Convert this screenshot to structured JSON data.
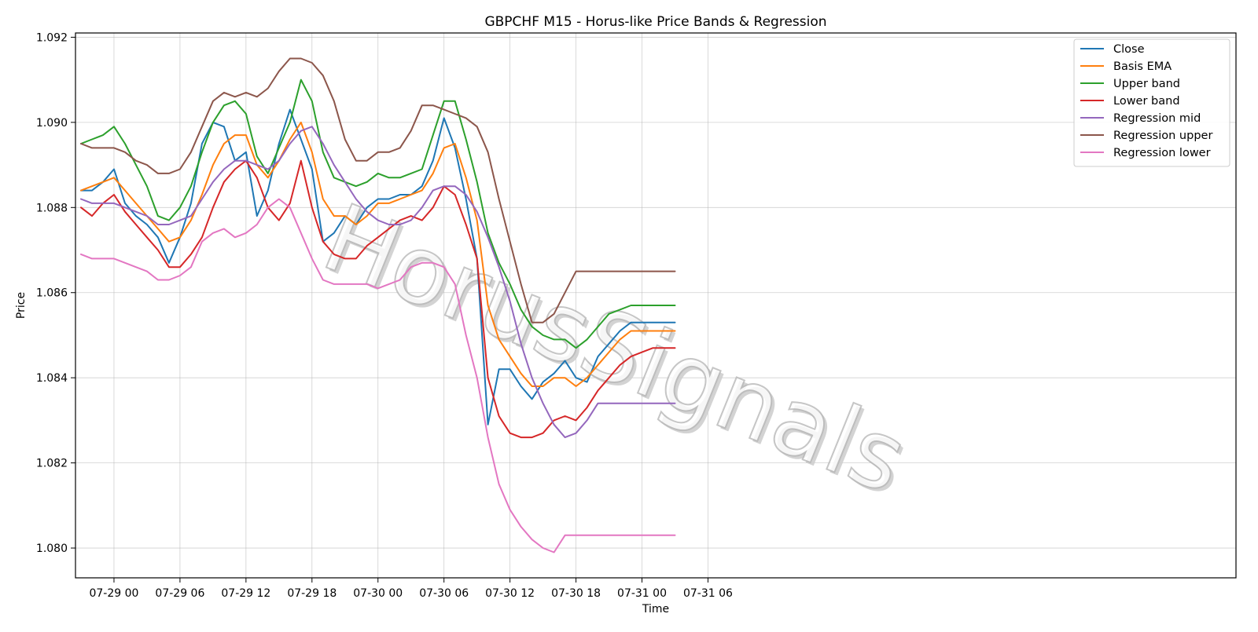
{
  "chart_data": {
    "type": "line",
    "title": "GBPCHF M15 - Horus-like Price Bands & Regression",
    "xlabel": "Time",
    "ylabel": "Price",
    "watermark": "HorusSignals",
    "xlim": [
      -3.5,
      102.0
    ],
    "ylim": [
      1.0793,
      1.0921
    ],
    "grid": true,
    "legend_position": "top-right",
    "xticks": [
      {
        "value": 0,
        "label": "07-29 00"
      },
      {
        "value": 6,
        "label": "07-29 06"
      },
      {
        "value": 12,
        "label": "07-29 12"
      },
      {
        "value": 18,
        "label": "07-29 18"
      },
      {
        "value": 24,
        "label": "07-30 00"
      },
      {
        "value": 30,
        "label": "07-30 06"
      },
      {
        "value": 36,
        "label": "07-30 12"
      },
      {
        "value": 42,
        "label": "07-30 18"
      },
      {
        "value": 48,
        "label": "07-31 00"
      },
      {
        "value": 54,
        "label": "07-31 06"
      }
    ],
    "yticks": [
      {
        "value": 1.08,
        "label": "1.080"
      },
      {
        "value": 1.082,
        "label": "1.082"
      },
      {
        "value": 1.084,
        "label": "1.084"
      },
      {
        "value": 1.086,
        "label": "1.086"
      },
      {
        "value": 1.088,
        "label": "1.088"
      },
      {
        "value": 1.09,
        "label": "1.090"
      },
      {
        "value": 1.092,
        "label": "1.092"
      }
    ],
    "x": [
      -3.0,
      -2.0,
      -1.0,
      0.0,
      1.0,
      2.0,
      3.0,
      4.0,
      5.0,
      6.0,
      7.0,
      8.0,
      9.0,
      10.0,
      11.0,
      12.0,
      13.0,
      14.0,
      15.0,
      16.0,
      17.0,
      18.0,
      19.0,
      20.0,
      21.0,
      22.0,
      23.0,
      24.0,
      25.0,
      26.0,
      27.0,
      28.0,
      29.0,
      30.0,
      31.0,
      32.0,
      33.0,
      34.0,
      35.0,
      36.0,
      37.0,
      38.0,
      39.0,
      40.0,
      41.0,
      42.0,
      43.0,
      44.0,
      45.0,
      46.0,
      47.0,
      48.0,
      49.0,
      50.0,
      51.0
    ],
    "series": [
      {
        "name": "Close",
        "color": "#1f77b4",
        "values": [
          1.0884,
          1.0884,
          1.0886,
          1.0889,
          1.0881,
          1.0878,
          1.0876,
          1.0873,
          1.0867,
          1.0873,
          1.0881,
          1.0895,
          1.09,
          1.0899,
          1.0891,
          1.0893,
          1.0878,
          1.0884,
          1.0895,
          1.0903,
          1.0896,
          1.0889,
          1.0872,
          1.0874,
          1.0878,
          1.0876,
          1.088,
          1.0882,
          1.0882,
          1.0883,
          1.0883,
          1.0885,
          1.0891,
          1.0901,
          1.0894,
          1.0882,
          1.0868,
          1.0829,
          1.0842,
          1.0842,
          1.0838,
          1.0835,
          1.0839,
          1.0841,
          1.0844,
          1.084,
          1.0839,
          1.0845,
          1.0848,
          1.0851,
          1.0853,
          1.0853,
          1.0853,
          1.0853,
          1.0853
        ]
      },
      {
        "name": "Basis EMA",
        "color": "#ff7f0e",
        "values": [
          1.0884,
          1.0885,
          1.0886,
          1.0887,
          1.0884,
          1.0881,
          1.0878,
          1.0875,
          1.0872,
          1.0873,
          1.0877,
          1.0883,
          1.089,
          1.0895,
          1.0897,
          1.0897,
          1.089,
          1.0887,
          1.0891,
          1.0896,
          1.09,
          1.0893,
          1.0882,
          1.0878,
          1.0878,
          1.0876,
          1.0878,
          1.0881,
          1.0881,
          1.0882,
          1.0883,
          1.0884,
          1.0888,
          1.0894,
          1.0895,
          1.0887,
          1.0877,
          1.0857,
          1.0849,
          1.0845,
          1.0841,
          1.0838,
          1.0838,
          1.084,
          1.084,
          1.0838,
          1.084,
          1.0843,
          1.0846,
          1.0849,
          1.0851,
          1.0851,
          1.0851,
          1.0851,
          1.0851
        ]
      },
      {
        "name": "Upper band",
        "color": "#2ca02c",
        "values": [
          1.0895,
          1.0896,
          1.0897,
          1.0899,
          1.0895,
          1.089,
          1.0885,
          1.0878,
          1.0877,
          1.088,
          1.0885,
          1.0893,
          1.09,
          1.0904,
          1.0905,
          1.0902,
          1.0892,
          1.0888,
          1.0894,
          1.09,
          1.091,
          1.0905,
          1.0893,
          1.0887,
          1.0886,
          1.0885,
          1.0886,
          1.0888,
          1.0887,
          1.0887,
          1.0888,
          1.0889,
          1.0897,
          1.0905,
          1.0905,
          1.0896,
          1.0886,
          1.0874,
          1.0867,
          1.0862,
          1.0856,
          1.0852,
          1.085,
          1.0849,
          1.0849,
          1.0847,
          1.0849,
          1.0852,
          1.0855,
          1.0856,
          1.0857,
          1.0857,
          1.0857,
          1.0857,
          1.0857
        ]
      },
      {
        "name": "Lower band",
        "color": "#d62728",
        "values": [
          1.088,
          1.0878,
          1.0881,
          1.0883,
          1.0879,
          1.0876,
          1.0873,
          1.087,
          1.0866,
          1.0866,
          1.0869,
          1.0873,
          1.088,
          1.0886,
          1.0889,
          1.0891,
          1.0887,
          1.088,
          1.0877,
          1.0881,
          1.0891,
          1.088,
          1.0872,
          1.0869,
          1.0868,
          1.0868,
          1.0871,
          1.0873,
          1.0875,
          1.0877,
          1.0878,
          1.0877,
          1.088,
          1.0885,
          1.0883,
          1.0876,
          1.0868,
          1.084,
          1.0831,
          1.0827,
          1.0826,
          1.0826,
          1.0827,
          1.083,
          1.0831,
          1.083,
          1.0833,
          1.0837,
          1.084,
          1.0843,
          1.0845,
          1.0846,
          1.0847,
          1.0847,
          1.0847
        ]
      },
      {
        "name": "Regression mid",
        "color": "#9467bd",
        "values": [
          1.0882,
          1.0881,
          1.0881,
          1.0881,
          1.088,
          1.0879,
          1.0878,
          1.0876,
          1.0876,
          1.0877,
          1.0878,
          1.0882,
          1.0886,
          1.0889,
          1.0891,
          1.0891,
          1.089,
          1.0889,
          1.0891,
          1.0895,
          1.0898,
          1.0899,
          1.0895,
          1.089,
          1.0886,
          1.0882,
          1.0879,
          1.0877,
          1.0876,
          1.0876,
          1.0877,
          1.088,
          1.0884,
          1.0885,
          1.0885,
          1.0883,
          1.0879,
          1.0873,
          1.0866,
          1.0858,
          1.0848,
          1.084,
          1.0834,
          1.0829,
          1.0826,
          1.0827,
          1.083,
          1.0834,
          1.0834,
          1.0834,
          1.0834,
          1.0834,
          1.0834,
          1.0834,
          1.0834
        ]
      },
      {
        "name": "Regression upper",
        "color": "#8c564b",
        "values": [
          1.0895,
          1.0894,
          1.0894,
          1.0894,
          1.0893,
          1.0891,
          1.089,
          1.0888,
          1.0888,
          1.0889,
          1.0893,
          1.0899,
          1.0905,
          1.0907,
          1.0906,
          1.0907,
          1.0906,
          1.0908,
          1.0912,
          1.0915,
          1.0915,
          1.0914,
          1.0911,
          1.0905,
          1.0896,
          1.0891,
          1.0891,
          1.0893,
          1.0893,
          1.0894,
          1.0898,
          1.0904,
          1.0904,
          1.0903,
          1.0902,
          1.0901,
          1.0899,
          1.0893,
          1.0882,
          1.0872,
          1.0862,
          1.0853,
          1.0853,
          1.0855,
          1.086,
          1.0865,
          1.0865,
          1.0865,
          1.0865,
          1.0865,
          1.0865,
          1.0865,
          1.0865,
          1.0865,
          1.0865
        ]
      },
      {
        "name": "Regression lower",
        "color": "#e377c2",
        "values": [
          1.0869,
          1.0868,
          1.0868,
          1.0868,
          1.0867,
          1.0866,
          1.0865,
          1.0863,
          1.0863,
          1.0864,
          1.0866,
          1.0872,
          1.0874,
          1.0875,
          1.0873,
          1.0874,
          1.0876,
          1.088,
          1.0882,
          1.088,
          1.0874,
          1.0868,
          1.0863,
          1.0862,
          1.0862,
          1.0862,
          1.0862,
          1.0861,
          1.0862,
          1.0863,
          1.0866,
          1.0867,
          1.0867,
          1.0866,
          1.0862,
          1.085,
          1.084,
          1.0826,
          1.0815,
          1.0809,
          1.0805,
          1.0802,
          1.08,
          1.0799,
          1.0803,
          1.0803,
          1.0803,
          1.0803,
          1.0803,
          1.0803,
          1.0803,
          1.0803,
          1.0803,
          1.0803,
          1.0803
        ]
      }
    ]
  }
}
